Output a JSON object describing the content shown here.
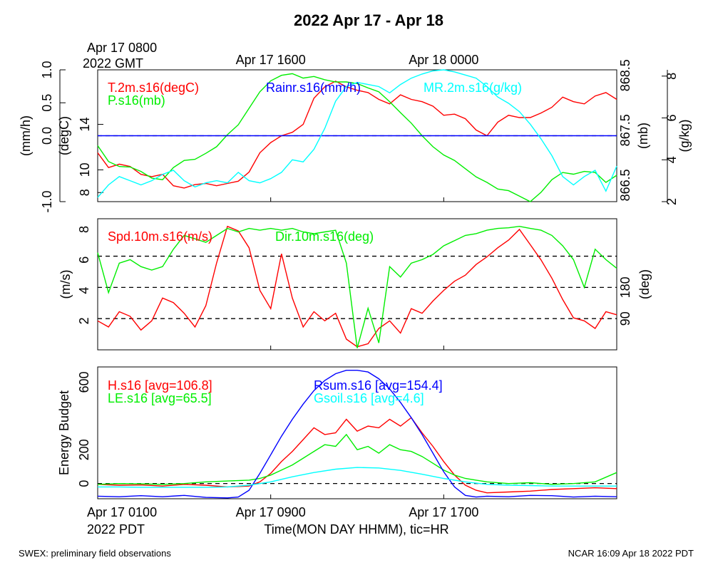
{
  "page": {
    "title": "2022 Apr 17 - Apr 18",
    "footer_left": "SWEX: preliminary field observations",
    "footer_right": "NCAR 16:09 Apr 18 2022 PDT"
  },
  "colors": {
    "red": "#ff0000",
    "green": "#00ee00",
    "blue": "#0000ff",
    "cyan": "#00ffff",
    "black": "#000000"
  },
  "chart_data": [
    {
      "type": "line",
      "panel": "top",
      "top_axis": {
        "ticks": [
          {
            "hour": 0,
            "line1": "Apr 17 0800",
            "line2": "2022 GMT"
          },
          {
            "hour": 8,
            "line1": "Apr 17 1600",
            "line2": ""
          },
          {
            "hour": 16,
            "line1": "Apr 18 0000",
            "line2": ""
          }
        ]
      },
      "x_range_hours": [
        0,
        24
      ],
      "axes": [
        {
          "id": "rain",
          "label": "(mm/h)",
          "side": "left",
          "ylim": [
            -1.0,
            1.0
          ],
          "ticks": [
            -1.0,
            0.0,
            0.5,
            1.0
          ],
          "tick_labels": [
            "-1.0",
            "0.0",
            "0.5",
            "1.0"
          ]
        },
        {
          "id": "temp",
          "label": "(degC)",
          "side": "left",
          "ylim": [
            7.2,
            18.8
          ],
          "ticks": [
            8,
            10,
            14
          ],
          "tick_labels": [
            "8",
            "10",
            "14"
          ]
        },
        {
          "id": "pres",
          "label": "(mb)",
          "side": "right",
          "ylim": [
            866.2,
            868.6
          ],
          "ticks": [
            866.5,
            867.5,
            868.5
          ],
          "tick_labels": [
            "866.5",
            "867.5",
            "868.5"
          ]
        },
        {
          "id": "mr",
          "label": "(g/kg)",
          "side": "right",
          "ylim": [
            2.0,
            8.3
          ],
          "ticks": [
            2,
            4,
            6,
            8
          ],
          "tick_labels": [
            "2",
            "4",
            "6",
            "8"
          ]
        }
      ],
      "reference_lines": [
        {
          "axis": "rain",
          "value": 0.0
        }
      ],
      "series": [
        {
          "name": "T.2m.s16(degC)",
          "axis": "temp",
          "color": "#ff0000",
          "x": [
            0,
            0.5,
            1,
            1.5,
            2,
            2.5,
            3,
            3.5,
            4,
            4.5,
            5,
            5.5,
            6,
            6.5,
            7,
            7.5,
            8,
            8.5,
            9,
            9.5,
            10,
            10.5,
            11,
            11.5,
            12,
            12.5,
            13,
            13.5,
            14,
            14.5,
            15,
            15.5,
            16,
            16.5,
            17,
            17.5,
            18,
            18.5,
            19,
            19.5,
            20,
            20.5,
            21,
            21.5,
            22,
            22.5,
            23,
            23.5,
            24
          ],
          "y": [
            11.5,
            10.2,
            10.5,
            10.3,
            9.6,
            9.4,
            9.6,
            8.6,
            8.4,
            8.7,
            8.8,
            8.6,
            8.8,
            9.0,
            9.8,
            11.5,
            12.4,
            13.0,
            13.3,
            14.0,
            16.3,
            17.3,
            17.8,
            17.3,
            17.0,
            16.8,
            16.2,
            15.8,
            16.6,
            16.2,
            16.0,
            15.6,
            14.8,
            14.9,
            14.5,
            13.5,
            13.0,
            14.2,
            14.8,
            14.6,
            14.6,
            15.0,
            15.5,
            16.4,
            16.0,
            15.8,
            16.5,
            16.8,
            16.2
          ]
        },
        {
          "name": "P.s16(mb)",
          "axis": "pres",
          "color": "#00ee00",
          "x": [
            0,
            0.5,
            1,
            1.5,
            2,
            2.5,
            3,
            3.5,
            4,
            4.5,
            5,
            5.5,
            6,
            6.5,
            7,
            7.5,
            8,
            8.5,
            9,
            9.5,
            10,
            10.5,
            11,
            11.5,
            12,
            12.5,
            13,
            13.5,
            14,
            14.5,
            15,
            15.5,
            16,
            16.5,
            17,
            17.5,
            18,
            18.5,
            19,
            19.5,
            20,
            20.5,
            21,
            21.5,
            22,
            22.5,
            23,
            23.5,
            24
          ],
          "y": [
            867.22,
            866.93,
            866.84,
            866.83,
            866.75,
            866.63,
            866.6,
            866.82,
            866.95,
            866.97,
            867.08,
            867.2,
            867.42,
            867.6,
            867.9,
            868.2,
            868.4,
            868.5,
            868.53,
            868.45,
            868.48,
            868.42,
            868.38,
            868.38,
            868.35,
            868.27,
            868.2,
            868.02,
            867.82,
            867.63,
            867.4,
            867.2,
            867.05,
            866.95,
            866.8,
            866.65,
            866.55,
            866.43,
            866.4,
            866.3,
            866.2,
            866.37,
            866.6,
            866.73,
            866.7,
            866.75,
            866.73,
            866.55,
            866.68
          ]
        },
        {
          "name": "Rainr.s16(mm/h)",
          "axis": "rain",
          "color": "#0000ff",
          "x": [
            0,
            24
          ],
          "y": [
            0.0,
            0.0
          ]
        },
        {
          "name": "MR.2m.s16(g/kg)",
          "axis": "mr",
          "color": "#00ffff",
          "x": [
            0,
            0.5,
            1,
            1.5,
            2,
            2.5,
            3,
            3.5,
            4,
            4.5,
            5,
            5.5,
            6,
            6.5,
            7,
            7.5,
            8,
            8.5,
            9,
            9.5,
            10,
            10.5,
            11,
            11.5,
            12,
            12.5,
            13,
            13.5,
            14,
            14.5,
            15,
            15.5,
            16,
            16.5,
            17,
            17.5,
            18,
            18.5,
            19,
            19.5,
            20,
            20.5,
            21,
            21.5,
            22,
            22.5,
            23,
            23.5,
            24
          ],
          "y": [
            2.2,
            2.8,
            3.2,
            3.0,
            2.8,
            3.0,
            3.3,
            3.5,
            3.0,
            2.7,
            2.9,
            3.0,
            2.9,
            3.4,
            3.0,
            2.9,
            3.1,
            3.4,
            4.0,
            3.9,
            4.5,
            5.5,
            6.8,
            7.5,
            7.7,
            7.6,
            7.5,
            7.2,
            7.6,
            7.9,
            8.1,
            8.25,
            8.3,
            8.2,
            8.05,
            7.9,
            7.5,
            7.0,
            6.7,
            6.3,
            5.7,
            5.0,
            4.2,
            3.2,
            2.8,
            3.2,
            3.5,
            2.5,
            3.7
          ]
        }
      ]
    },
    {
      "type": "line",
      "panel": "middle",
      "x_range_hours": [
        0,
        24
      ],
      "axes": [
        {
          "id": "spd",
          "label": "(m/s)",
          "side": "left",
          "ylim": [
            0.1,
            8.7
          ],
          "ticks": [
            2,
            4,
            6,
            8
          ],
          "tick_labels": [
            "2",
            "4",
            "6",
            "8"
          ]
        },
        {
          "id": "dir",
          "label": "(deg)",
          "side": "right",
          "ylim": [
            0,
            378
          ],
          "ticks": [
            90,
            180
          ],
          "tick_labels": [
            "90",
            "180"
          ]
        }
      ],
      "reference_lines": [
        {
          "axis": "dir",
          "value": 90
        },
        {
          "axis": "dir",
          "value": 180
        },
        {
          "axis": "dir",
          "value": 270
        }
      ],
      "series": [
        {
          "name": "Spd.10m.s16(m/s)",
          "axis": "spd",
          "color": "#ff0000",
          "x": [
            0,
            0.5,
            1,
            1.5,
            2,
            2.5,
            3,
            3.5,
            4,
            4.5,
            5,
            5.5,
            6,
            6.5,
            7,
            7.5,
            8,
            8.5,
            9,
            9.5,
            10,
            10.5,
            11,
            11.5,
            12,
            12.5,
            13,
            13.5,
            14,
            14.5,
            15,
            15.5,
            16,
            16.5,
            17,
            17.5,
            18,
            18.5,
            19,
            19.5,
            20,
            20.5,
            21,
            21.5,
            22,
            22.5,
            23,
            23.5,
            24
          ],
          "y": [
            2.0,
            1.6,
            2.6,
            2.3,
            1.4,
            2.0,
            3.5,
            3.2,
            2.5,
            1.6,
            3.0,
            5.8,
            8.2,
            7.9,
            6.8,
            4.0,
            2.8,
            6.4,
            3.5,
            1.6,
            2.6,
            2.0,
            2.5,
            0.8,
            0.3,
            0.5,
            1.5,
            2.0,
            1.2,
            2.8,
            2.5,
            3.3,
            4.0,
            4.6,
            5.0,
            5.7,
            6.2,
            6.8,
            7.3,
            8.0,
            7.0,
            6.0,
            4.8,
            3.4,
            2.2,
            2.0,
            1.5,
            2.6,
            2.4
          ]
        },
        {
          "name": "Dir.10m.s16(deg)",
          "axis": "dir",
          "color": "#00ee00",
          "x": [
            0,
            0.5,
            1,
            1.5,
            2,
            2.5,
            3,
            3.5,
            4,
            4.5,
            5,
            5.5,
            6,
            6.5,
            7,
            7.5,
            8,
            8.5,
            9,
            9.5,
            10,
            10.5,
            11,
            11.5,
            12,
            12.5,
            13,
            13.5,
            14,
            14.5,
            15,
            15.5,
            16,
            16.5,
            17,
            17.5,
            18,
            18.5,
            19,
            19.5,
            20,
            20.5,
            21,
            21.5,
            22,
            22.5,
            23,
            23.5,
            24
          ],
          "y": [
            280,
            165,
            250,
            260,
            240,
            230,
            240,
            290,
            330,
            320,
            310,
            330,
            350,
            340,
            350,
            345,
            350,
            345,
            350,
            340,
            335,
            340,
            345,
            250,
            5,
            120,
            20,
            240,
            210,
            250,
            260,
            275,
            300,
            315,
            330,
            335,
            345,
            350,
            352,
            356,
            350,
            345,
            330,
            300,
            260,
            180,
            290,
            260,
            235
          ]
        }
      ]
    },
    {
      "type": "line",
      "panel": "bottom",
      "x_axis": {
        "ticks": [
          {
            "hour": 0,
            "line1": "Apr 17 0100",
            "line2": "2022 PDT"
          },
          {
            "hour": 8,
            "line1": "Apr 17 0900",
            "line2": ""
          },
          {
            "hour": 16,
            "line1": "Apr 17 1700",
            "line2": ""
          }
        ],
        "label": "Time(MON DAY HHMM), tic=HR"
      },
      "x_range_hours": [
        0,
        24
      ],
      "axes": [
        {
          "id": "energy",
          "label": "Energy Budget",
          "side": "left",
          "ylim": [
            -90,
            690
          ],
          "ticks": [
            0,
            200,
            600
          ],
          "tick_labels": [
            "0",
            "200",
            "600"
          ]
        }
      ],
      "reference_lines": [
        {
          "axis": "energy",
          "value": 0
        }
      ],
      "series": [
        {
          "name": "H.s16 [avg=106.8]",
          "axis": "energy",
          "color": "#ff0000",
          "x": [
            0,
            1,
            2,
            3,
            4,
            5,
            6,
            7,
            7.5,
            8,
            8.5,
            9,
            9.5,
            10,
            10.5,
            11,
            11.5,
            12,
            12.5,
            13,
            13.5,
            14,
            14.5,
            15,
            15.5,
            16,
            16.5,
            17,
            17.5,
            18,
            19,
            20,
            21,
            22,
            23,
            24
          ],
          "y": [
            -5,
            -10,
            -8,
            -15,
            -5,
            -10,
            -20,
            -15,
            10,
            60,
            130,
            190,
            260,
            330,
            290,
            300,
            380,
            310,
            340,
            330,
            380,
            340,
            390,
            300,
            220,
            130,
            50,
            -10,
            -40,
            -55,
            -50,
            -45,
            -35,
            -30,
            -25,
            -30
          ]
        },
        {
          "name": "LE.s16 [avg=65.5]",
          "axis": "energy",
          "color": "#00ee00",
          "x": [
            0,
            1,
            2,
            3,
            4,
            5,
            6,
            7,
            7.5,
            8,
            8.5,
            9,
            9.5,
            10,
            10.5,
            11,
            11.5,
            12,
            12.5,
            13,
            13.5,
            14,
            14.5,
            15,
            15.5,
            16,
            16.5,
            17,
            17.5,
            18,
            19,
            20,
            21,
            22,
            23,
            24
          ],
          "y": [
            -5,
            0,
            -2,
            -5,
            0,
            10,
            15,
            20,
            30,
            50,
            80,
            110,
            150,
            190,
            230,
            220,
            290,
            200,
            220,
            180,
            230,
            200,
            190,
            160,
            120,
            80,
            50,
            30,
            20,
            10,
            0,
            5,
            -5,
            0,
            10,
            65
          ]
        },
        {
          "name": "Rsum.s16 [avg=154.4]",
          "axis": "energy",
          "color": "#0000ff",
          "x": [
            0,
            1,
            2,
            3,
            4,
            5,
            6,
            6.5,
            7,
            7.5,
            8,
            8.5,
            9,
            9.5,
            10,
            10.5,
            11,
            11.5,
            12,
            12.5,
            13,
            13.5,
            14,
            14.5,
            15,
            15.5,
            16,
            16.5,
            17,
            17.5,
            18,
            19,
            20,
            21,
            22,
            23,
            24
          ],
          "y": [
            -75,
            -78,
            -72,
            -78,
            -70,
            -82,
            -85,
            -80,
            -40,
            60,
            170,
            280,
            380,
            470,
            550,
            610,
            650,
            670,
            670,
            660,
            620,
            560,
            480,
            390,
            290,
            180,
            70,
            -20,
            -70,
            -80,
            -75,
            -78,
            -70,
            -72,
            -80,
            -75,
            -78
          ]
        },
        {
          "name": "Gsoil.s16 [avg=4.6]",
          "axis": "energy",
          "color": "#00ffff",
          "x": [
            0,
            1,
            2,
            3,
            4,
            5,
            6,
            7,
            8,
            9,
            10,
            11,
            12,
            13,
            14,
            15,
            16,
            17,
            18,
            19,
            20,
            21,
            22,
            23,
            24
          ],
          "y": [
            -20,
            -20,
            -22,
            -22,
            -22,
            -22,
            -20,
            -10,
            10,
            40,
            65,
            85,
            95,
            92,
            78,
            55,
            30,
            10,
            -5,
            -10,
            -12,
            -15,
            -15,
            -15,
            -15
          ]
        }
      ]
    }
  ]
}
